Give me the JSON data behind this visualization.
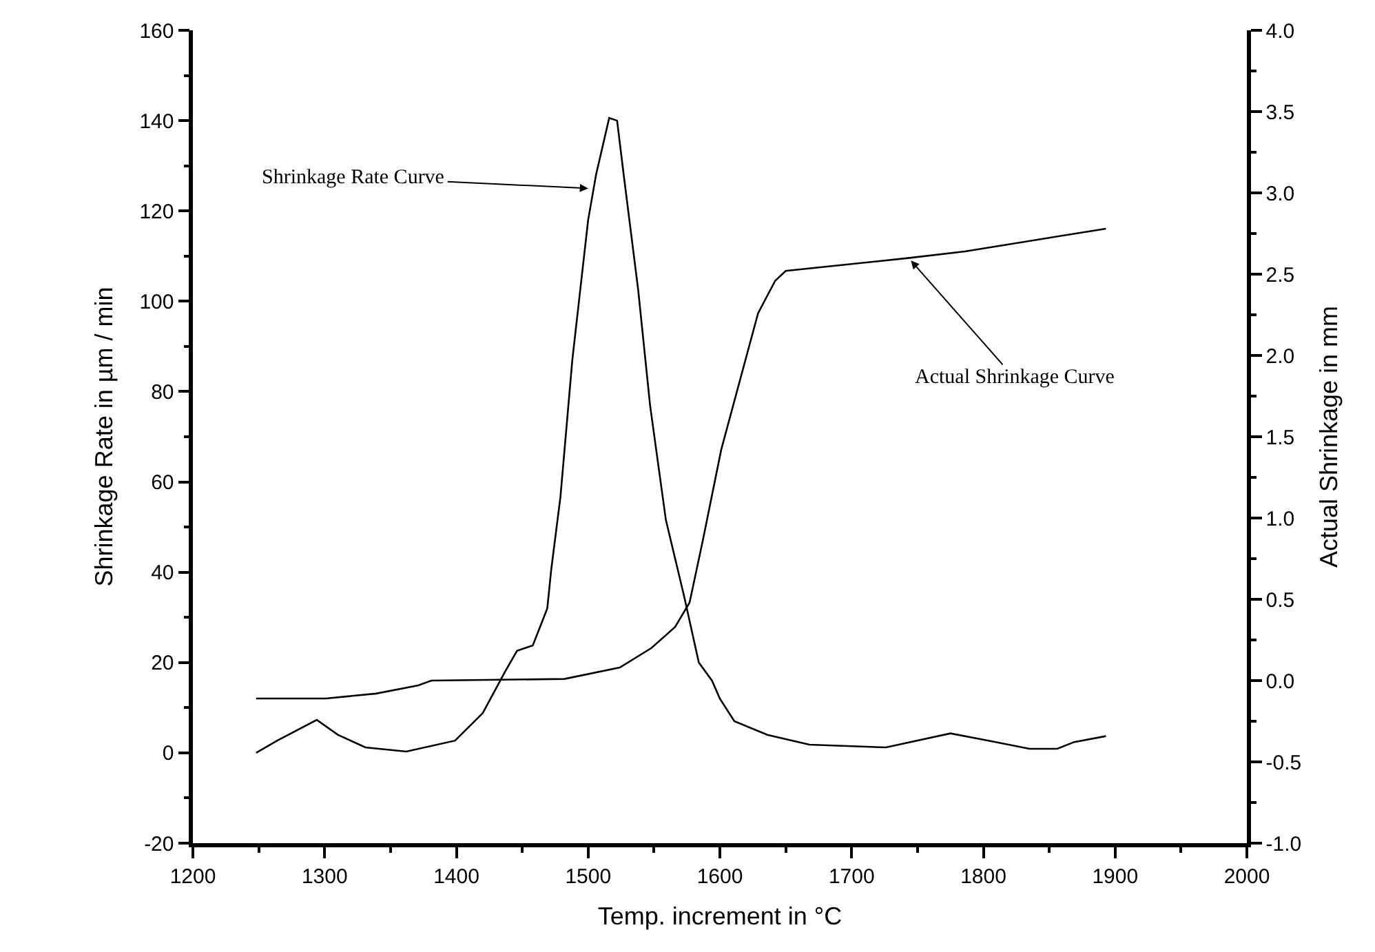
{
  "chart_data": {
    "type": "line",
    "xlabel": "Temp. increment in °C",
    "ylabel": "Shrinkage Rate in µm / min",
    "y2label": "Actual Shrinkage in mm",
    "xlim": [
      1200,
      2000
    ],
    "xticks": [
      1200,
      1300,
      1400,
      1500,
      1600,
      1700,
      1800,
      1900,
      2000
    ],
    "ylim": [
      -20,
      160
    ],
    "yticks": [
      -20,
      0,
      20,
      40,
      60,
      80,
      100,
      120,
      140,
      160
    ],
    "y2lim": [
      -1.0,
      4.0
    ],
    "y2ticks": [
      {
        "value": -1.0,
        "label": "-1.0"
      },
      {
        "value": -0.5,
        "label": "-0.5"
      },
      {
        "value": 0.0,
        "label": "0.0"
      },
      {
        "value": 0.5,
        "label": "0.5"
      },
      {
        "value": 1.0,
        "label": "1.0"
      },
      {
        "value": 1.5,
        "label": "1.5"
      },
      {
        "value": 2.0,
        "label": "2.0"
      },
      {
        "value": 2.5,
        "label": "2.5"
      },
      {
        "value": 3.0,
        "label": "3.0"
      },
      {
        "value": 3.5,
        "label": "3.5"
      },
      {
        "value": 4.0,
        "label": "4.0"
      }
    ],
    "marker": "none",
    "line_style": "solid",
    "series": [
      {
        "color": "#000000",
        "x": [
          1248,
          1264,
          1294,
          1310,
          1331,
          1362,
          1399,
          1420,
          1437,
          1446,
          1458,
          1469,
          1472,
          1479,
          1488,
          1500,
          1506,
          1516,
          1522,
          1527,
          1538,
          1547,
          1559,
          1573,
          1584,
          1594,
          1600,
          1611,
          1636,
          1668,
          1726,
          1775,
          1804,
          1835,
          1856,
          1869,
          1893
        ],
        "values": [
          0,
          2.7,
          7.3,
          4,
          1.2,
          0.3,
          2.7,
          8.8,
          18,
          22.6,
          23.8,
          32,
          40.6,
          56.7,
          87,
          118,
          128,
          140.6,
          140,
          128,
          102.5,
          77,
          51.6,
          34.5,
          20,
          16,
          12,
          7,
          4,
          1.8,
          1.2,
          4.3,
          2.7,
          0.9,
          0.9,
          2.4,
          3.7
        ]
      },
      {
        "color": "#000000",
        "axis": "y2",
        "x": [
          1248,
          1301,
          1339,
          1371,
          1381,
          1482,
          1524,
          1548,
          1566,
          1577,
          1587,
          1601,
          1615,
          1629,
          1642,
          1650,
          1744,
          1786,
          1893
        ],
        "values": [
          -0.11,
          -0.11,
          -0.08,
          -0.03,
          0.0,
          0.01,
          0.08,
          0.2,
          0.33,
          0.48,
          0.86,
          1.42,
          1.84,
          2.26,
          2.46,
          2.52,
          2.6,
          2.64,
          2.78
        ]
      }
    ],
    "annotations": [
      {
        "text": "Shrinkage Rate Curve",
        "x": 1500,
        "y": 125
      },
      {
        "text": "Actual Shrinkage Curve",
        "x": 1745,
        "y": 109
      }
    ]
  }
}
